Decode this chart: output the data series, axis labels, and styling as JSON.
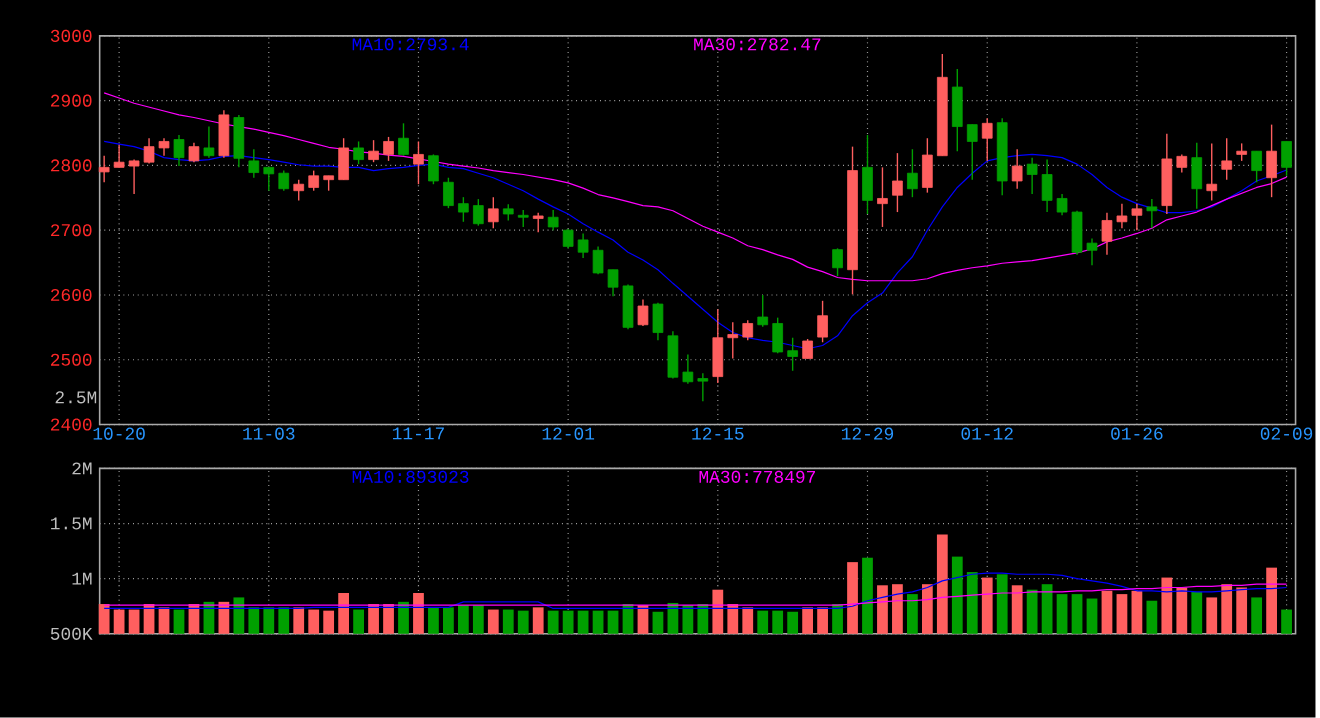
{
  "chart_data": [
    {
      "type": "candlestick",
      "grid": true,
      "annotations": [
        "2.5M"
      ],
      "categories": [
        null,
        "10-20",
        null,
        null,
        null,
        null,
        null,
        null,
        null,
        null,
        null,
        "11-03",
        null,
        null,
        null,
        null,
        null,
        null,
        null,
        null,
        null,
        "11-17",
        null,
        null,
        null,
        null,
        null,
        null,
        null,
        null,
        null,
        "12-01",
        null,
        null,
        null,
        null,
        null,
        null,
        null,
        null,
        null,
        "12-15",
        null,
        null,
        null,
        null,
        null,
        null,
        null,
        null,
        null,
        "12-29",
        null,
        null,
        null,
        null,
        null,
        null,
        null,
        "01-12",
        null,
        null,
        null,
        null,
        null,
        null,
        null,
        null,
        null,
        "01-26",
        null,
        null,
        null,
        null,
        null,
        null,
        null,
        null,
        null,
        "02-09"
      ],
      "ylim": [
        2400,
        3000
      ],
      "yticks": [
        2400,
        2500,
        2600,
        2700,
        2800,
        2900,
        3000
      ],
      "ohlc": [
        [
          2790,
          2815,
          2774,
          2797
        ],
        [
          2797,
          2832,
          2797,
          2805
        ],
        [
          2799,
          2809,
          2756,
          2807
        ],
        [
          2805,
          2842,
          2803,
          2829
        ],
        [
          2827,
          2842,
          2815,
          2837
        ],
        [
          2840,
          2847,
          2799,
          2812
        ],
        [
          2807,
          2835,
          2805,
          2829
        ],
        [
          2827,
          2860,
          2812,
          2815
        ],
        [
          2815,
          2885,
          2812,
          2878
        ],
        [
          2874,
          2878,
          2797,
          2811
        ],
        [
          2807,
          2825,
          2781,
          2789
        ],
        [
          2797,
          2797,
          2761,
          2787
        ],
        [
          2788,
          2792,
          2761,
          2764
        ],
        [
          2761,
          2778,
          2746,
          2771
        ],
        [
          2766,
          2792,
          2761,
          2784
        ],
        [
          2778,
          2784,
          2761,
          2784
        ],
        [
          2778,
          2842,
          2778,
          2827
        ],
        [
          2827,
          2837,
          2802,
          2809
        ],
        [
          2809,
          2839,
          2805,
          2822
        ],
        [
          2817,
          2844,
          2807,
          2837
        ],
        [
          2842,
          2865,
          2815,
          2817
        ],
        [
          2802,
          2837,
          2771,
          2817
        ],
        [
          2815,
          2817,
          2771,
          2776
        ],
        [
          2774,
          2781,
          2734,
          2738
        ],
        [
          2741,
          2751,
          2713,
          2728
        ],
        [
          2738,
          2748,
          2707,
          2710
        ],
        [
          2713,
          2751,
          2703,
          2733
        ],
        [
          2733,
          2740,
          2715,
          2725
        ],
        [
          2723,
          2731,
          2705,
          2720
        ],
        [
          2718,
          2727,
          2697,
          2722
        ],
        [
          2720,
          2731,
          2700,
          2705
        ],
        [
          2700,
          2702,
          2672,
          2675
        ],
        [
          2685,
          2695,
          2657,
          2666
        ],
        [
          2669,
          2675,
          2632,
          2634
        ],
        [
          2639,
          2639,
          2598,
          2612
        ],
        [
          2614,
          2616,
          2547,
          2550
        ],
        [
          2554,
          2593,
          2552,
          2583
        ],
        [
          2586,
          2588,
          2530,
          2542
        ],
        [
          2537,
          2544,
          2471,
          2473
        ],
        [
          2481,
          2508,
          2463,
          2466
        ],
        [
          2471,
          2479,
          2436,
          2467
        ],
        [
          2474,
          2578,
          2464,
          2534
        ],
        [
          2534,
          2558,
          2502,
          2539
        ],
        [
          2535,
          2561,
          2530,
          2556
        ],
        [
          2566,
          2600,
          2551,
          2554
        ],
        [
          2556,
          2565,
          2510,
          2512
        ],
        [
          2514,
          2534,
          2483,
          2505
        ],
        [
          2502,
          2532,
          2502,
          2529
        ],
        [
          2535,
          2591,
          2527,
          2568
        ],
        [
          2670,
          2672,
          2629,
          2642
        ],
        [
          2639,
          2829,
          2601,
          2792
        ],
        [
          2797,
          2847,
          2725,
          2746
        ],
        [
          2741,
          2797,
          2705,
          2749
        ],
        [
          2754,
          2819,
          2728,
          2776
        ],
        [
          2788,
          2825,
          2751,
          2764
        ],
        [
          2766,
          2842,
          2758,
          2816
        ],
        [
          2815,
          2972,
          2815,
          2936
        ],
        [
          2921,
          2949,
          2822,
          2860
        ],
        [
          2863,
          2863,
          2778,
          2837
        ],
        [
          2842,
          2873,
          2807,
          2865
        ],
        [
          2866,
          2873,
          2754,
          2776
        ],
        [
          2776,
          2825,
          2764,
          2799
        ],
        [
          2802,
          2812,
          2756,
          2786
        ],
        [
          2786,
          2809,
          2728,
          2746
        ],
        [
          2749,
          2756,
          2723,
          2728
        ],
        [
          2728,
          2730,
          2662,
          2666
        ],
        [
          2680,
          2687,
          2646,
          2669
        ],
        [
          2683,
          2727,
          2662,
          2715
        ],
        [
          2713,
          2741,
          2703,
          2722
        ],
        [
          2723,
          2741,
          2700,
          2733
        ],
        [
          2736,
          2748,
          2703,
          2730
        ],
        [
          2738,
          2849,
          2725,
          2810
        ],
        [
          2797,
          2817,
          2789,
          2814
        ],
        [
          2812,
          2835,
          2733,
          2764
        ],
        [
          2761,
          2834,
          2746,
          2771
        ],
        [
          2794,
          2842,
          2778,
          2807
        ],
        [
          2817,
          2834,
          2807,
          2822
        ],
        [
          2822,
          2822,
          2774,
          2792
        ],
        [
          2781,
          2863,
          2751,
          2822
        ],
        [
          2837,
          2837,
          2784,
          2797
        ]
      ],
      "colors": [
        "#ff5f5f",
        "#ff5f5f",
        "#ff5f5f",
        "#ff5f5f",
        "#ff5f5f",
        "#00a000",
        "#ff5f5f",
        "#00a000",
        "#ff5f5f",
        "#00a000",
        "#00a000",
        "#00a000",
        "#00a000",
        "#ff5f5f",
        "#ff5f5f",
        "#ff5f5f",
        "#ff5f5f",
        "#00a000",
        "#ff5f5f",
        "#ff5f5f",
        "#00a000",
        "#ff5f5f",
        "#00a000",
        "#00a000",
        "#00a000",
        "#00a000",
        "#ff5f5f",
        "#00a000",
        "#00a000",
        "#ff5f5f",
        "#00a000",
        "#00a000",
        "#00a000",
        "#00a000",
        "#00a000",
        "#00a000",
        "#ff5f5f",
        "#00a000",
        "#00a000",
        "#00a000",
        "#00a000",
        "#ff5f5f",
        "#ff5f5f",
        "#ff5f5f",
        "#00a000",
        "#00a000",
        "#00a000",
        "#ff5f5f",
        "#ff5f5f",
        "#00a000",
        "#ff5f5f",
        "#00a000",
        "#ff5f5f",
        "#ff5f5f",
        "#00a000",
        "#ff5f5f",
        "#ff5f5f",
        "#00a000",
        "#00a000",
        "#ff5f5f",
        "#00a000",
        "#ff5f5f",
        "#00a000",
        "#00a000",
        "#00a000",
        "#00a000",
        "#00a000",
        "#ff5f5f",
        "#ff5f5f",
        "#ff5f5f",
        "#00a000",
        "#ff5f5f",
        "#ff5f5f",
        "#00a000",
        "#ff5f5f",
        "#ff5f5f",
        "#ff5f5f",
        "#00a000",
        "#ff5f5f",
        "#00a000"
      ],
      "series": [
        {
          "name": "MA10:2793.4",
          "type": "line",
          "color": "#0000ff",
          "values": [
            2837,
            2833,
            2829,
            2822,
            2812,
            2809,
            2807,
            2809,
            2814,
            2815,
            2812,
            2809,
            2805,
            2801,
            2799,
            2799,
            2797,
            2797,
            2792,
            2795,
            2797,
            2800,
            2802,
            2797,
            2795,
            2788,
            2781,
            2771,
            2761,
            2748,
            2736,
            2725,
            2710,
            2697,
            2685,
            2666,
            2654,
            2639,
            2618,
            2598,
            2578,
            2558,
            2542,
            2534,
            2530,
            2527,
            2522,
            2517,
            2522,
            2537,
            2568,
            2588,
            2603,
            2634,
            2659,
            2700,
            2736,
            2766,
            2788,
            2807,
            2812,
            2815,
            2817,
            2815,
            2812,
            2802,
            2786,
            2766,
            2751,
            2741,
            2734,
            2727,
            2727,
            2730,
            2736,
            2748,
            2761,
            2776,
            2784,
            2793
          ]
        },
        {
          "name": "MA30:2782.47",
          "type": "line",
          "color": "#ff00ff",
          "values": [
            2912,
            2904,
            2896,
            2890,
            2884,
            2878,
            2874,
            2869,
            2864,
            2860,
            2856,
            2851,
            2846,
            2840,
            2834,
            2828,
            2825,
            2821,
            2819,
            2816,
            2814,
            2810,
            2806,
            2802,
            2799,
            2796,
            2792,
            2789,
            2786,
            2782,
            2778,
            2773,
            2765,
            2755,
            2750,
            2744,
            2738,
            2736,
            2730,
            2718,
            2706,
            2697,
            2688,
            2676,
            2670,
            2662,
            2655,
            2643,
            2636,
            2627,
            2624,
            2622,
            2622,
            2622,
            2622,
            2625,
            2633,
            2638,
            2642,
            2645,
            2649,
            2651,
            2653,
            2657,
            2661,
            2665,
            2671,
            2682,
            2688,
            2695,
            2703,
            2716,
            2722,
            2728,
            2738,
            2748,
            2757,
            2766,
            2772,
            2782
          ]
        }
      ]
    },
    {
      "type": "bar",
      "grid": true,
      "tick_labels": "y",
      "categories": [
        null,
        null,
        null,
        null,
        null,
        null,
        null,
        null,
        null,
        null,
        null,
        null,
        null,
        null,
        null,
        null,
        null,
        null,
        null,
        null,
        null,
        null,
        null,
        null,
        null,
        null,
        null,
        null,
        null,
        null,
        null,
        null,
        null,
        null,
        null,
        null,
        null,
        null,
        null,
        null,
        null,
        null,
        null,
        null,
        null,
        null,
        null,
        null,
        null,
        null,
        null,
        null,
        null,
        null,
        null,
        null,
        null,
        null,
        null,
        null,
        null,
        null,
        null,
        null,
        null,
        null,
        null,
        null,
        null,
        null,
        null,
        null,
        null,
        null,
        null,
        null,
        null,
        null,
        null,
        null
      ],
      "ylim": [
        500000,
        2000000
      ],
      "yticks": [
        {
          "value": 500000,
          "label": "500K"
        },
        {
          "value": 1000000,
          "label": "1M"
        },
        {
          "value": 1500000,
          "label": "1.5M"
        },
        {
          "value": 2000000,
          "label": "2M"
        }
      ],
      "values": [
        770000,
        720000,
        720000,
        770000,
        740000,
        720000,
        770000,
        790000,
        790000,
        830000,
        740000,
        740000,
        740000,
        740000,
        720000,
        710000,
        870000,
        720000,
        770000,
        770000,
        790000,
        870000,
        740000,
        740000,
        760000,
        760000,
        720000,
        720000,
        710000,
        740000,
        710000,
        710000,
        710000,
        710000,
        710000,
        770000,
        760000,
        700000,
        780000,
        760000,
        770000,
        900000,
        770000,
        740000,
        710000,
        710000,
        700000,
        740000,
        740000,
        770000,
        1150000,
        1190000,
        940000,
        950000,
        860000,
        950000,
        1400000,
        1200000,
        1060000,
        1010000,
        1040000,
        940000,
        900000,
        950000,
        860000,
        860000,
        820000,
        890000,
        860000,
        890000,
        800000,
        1010000,
        920000,
        880000,
        830000,
        950000,
        920000,
        830000,
        1100000,
        720000
      ],
      "colors": [
        "#ff5f5f",
        "#ff5f5f",
        "#ff5f5f",
        "#ff5f5f",
        "#ff5f5f",
        "#00a000",
        "#ff5f5f",
        "#00a000",
        "#ff5f5f",
        "#00a000",
        "#00a000",
        "#00a000",
        "#00a000",
        "#ff5f5f",
        "#ff5f5f",
        "#ff5f5f",
        "#ff5f5f",
        "#00a000",
        "#ff5f5f",
        "#ff5f5f",
        "#00a000",
        "#ff5f5f",
        "#00a000",
        "#00a000",
        "#00a000",
        "#00a000",
        "#ff5f5f",
        "#00a000",
        "#00a000",
        "#ff5f5f",
        "#00a000",
        "#00a000",
        "#00a000",
        "#00a000",
        "#00a000",
        "#00a000",
        "#ff5f5f",
        "#00a000",
        "#00a000",
        "#00a000",
        "#00a000",
        "#ff5f5f",
        "#ff5f5f",
        "#ff5f5f",
        "#00a000",
        "#00a000",
        "#00a000",
        "#ff5f5f",
        "#ff5f5f",
        "#00a000",
        "#ff5f5f",
        "#00a000",
        "#ff5f5f",
        "#ff5f5f",
        "#00a000",
        "#ff5f5f",
        "#ff5f5f",
        "#00a000",
        "#00a000",
        "#ff5f5f",
        "#00a000",
        "#ff5f5f",
        "#00a000",
        "#00a000",
        "#00a000",
        "#00a000",
        "#00a000",
        "#ff5f5f",
        "#ff5f5f",
        "#ff5f5f",
        "#00a000",
        "#ff5f5f",
        "#ff5f5f",
        "#00a000",
        "#ff5f5f",
        "#ff5f5f",
        "#ff5f5f",
        "#00a000",
        "#ff5f5f",
        "#00a000"
      ],
      "series": [
        {
          "name": "MA10:893023",
          "type": "line",
          "color": "#0000ff",
          "values": [
            730000,
            730000,
            730000,
            730000,
            730000,
            730000,
            730000,
            730000,
            730000,
            730000,
            730000,
            730000,
            730000,
            730000,
            740000,
            740000,
            740000,
            740000,
            740000,
            740000,
            740000,
            740000,
            740000,
            740000,
            790000,
            790000,
            790000,
            790000,
            790000,
            790000,
            730000,
            730000,
            730000,
            730000,
            730000,
            730000,
            730000,
            730000,
            730000,
            730000,
            730000,
            730000,
            730000,
            730000,
            730000,
            730000,
            730000,
            730000,
            730000,
            730000,
            750000,
            800000,
            830000,
            860000,
            880000,
            920000,
            980000,
            1010000,
            1040000,
            1050000,
            1050000,
            1040000,
            1040000,
            1040000,
            1030000,
            1000000,
            980000,
            960000,
            930000,
            890000,
            890000,
            880000,
            890000,
            880000,
            880000,
            890000,
            900000,
            910000,
            910000,
            920000
          ]
        },
        {
          "name": "MA30:778497",
          "type": "line",
          "color": "#ff00ff",
          "values": [
            760000,
            760000,
            760000,
            760000,
            760000,
            760000,
            760000,
            760000,
            760000,
            760000,
            760000,
            760000,
            760000,
            760000,
            760000,
            760000,
            760000,
            760000,
            760000,
            760000,
            760000,
            760000,
            760000,
            760000,
            760000,
            760000,
            760000,
            760000,
            760000,
            760000,
            760000,
            760000,
            760000,
            760000,
            760000,
            760000,
            760000,
            760000,
            760000,
            760000,
            760000,
            760000,
            760000,
            760000,
            760000,
            760000,
            760000,
            760000,
            760000,
            760000,
            770000,
            780000,
            790000,
            800000,
            800000,
            810000,
            830000,
            840000,
            850000,
            860000,
            870000,
            870000,
            880000,
            880000,
            880000,
            890000,
            890000,
            900000,
            900000,
            910000,
            910000,
            920000,
            920000,
            930000,
            930000,
            940000,
            940000,
            950000,
            950000,
            950000
          ]
        }
      ]
    }
  ]
}
